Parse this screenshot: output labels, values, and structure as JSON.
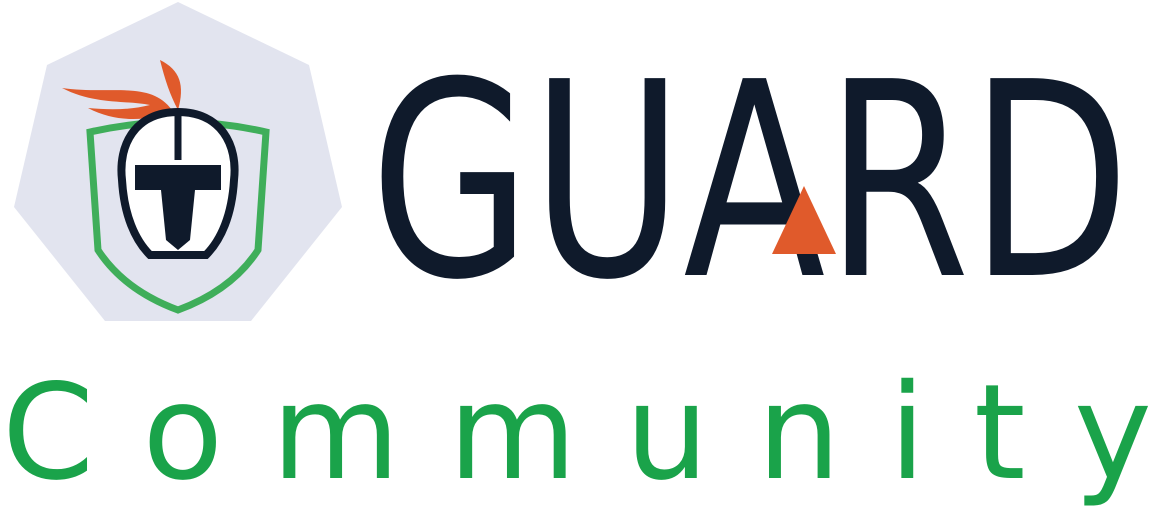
{
  "logo": {
    "wordmark": "GUARD",
    "subtitle": "Community"
  }
}
